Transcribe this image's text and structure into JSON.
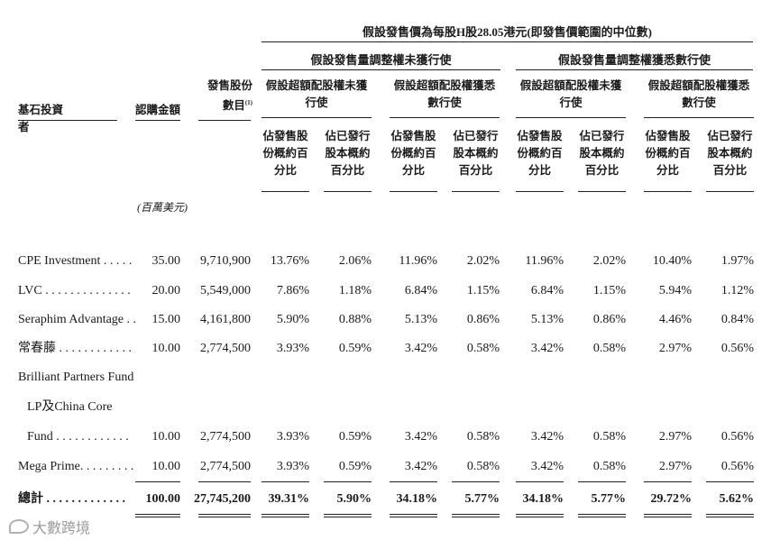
{
  "header": {
    "top": "假設發售價為每股H股28.05港元(即發售價範圍的中位數)",
    "group_a": "假設發售量調整權未獲行使",
    "group_b": "假設發售量調整權獲悉數行使",
    "sub_unexercised": "假設超額配股權未獲行使",
    "sub_exercised": "假設超額配股權獲悉數行使",
    "col_investor": "基石投資者",
    "col_amount": "認購金額",
    "col_shares": "發售股份數目",
    "col_shares_note": "(1)",
    "pct_offer": "佔發售股份概約百分比",
    "pct_issued": "佔已發行股本概約百分比",
    "unit": "(百萬美元)"
  },
  "rows": [
    {
      "name": "CPE Investment . . . . .",
      "amount": "35.00",
      "shares": "9,710,900",
      "v": [
        "13.76%",
        "2.06%",
        "11.96%",
        "2.02%",
        "11.96%",
        "2.02%",
        "10.40%",
        "1.97%"
      ]
    },
    {
      "name": "LVC . . . . . . . . . . . . . .",
      "amount": "20.00",
      "shares": "5,549,000",
      "v": [
        "7.86%",
        "1.18%",
        "6.84%",
        "1.15%",
        "6.84%",
        "1.15%",
        "5.94%",
        "1.12%"
      ]
    },
    {
      "name": "Seraphim Advantage . .",
      "amount": "15.00",
      "shares": "4,161,800",
      "v": [
        "5.90%",
        "0.88%",
        "5.13%",
        "0.86%",
        "5.13%",
        "0.86%",
        "4.46%",
        "0.84%"
      ]
    },
    {
      "name": "常春藤 . . . . . . . . . . . .",
      "amount": "10.00",
      "shares": "2,774,500",
      "v": [
        "3.93%",
        "0.59%",
        "3.42%",
        "0.58%",
        "3.42%",
        "0.58%",
        "2.97%",
        "0.56%"
      ]
    },
    {
      "name_lines": [
        "Brilliant Partners Fund",
        "LP及China Core",
        "Fund . . . . . . . . . . . ."
      ],
      "amount": "10.00",
      "shares": "2,774,500",
      "v": [
        "3.93%",
        "0.59%",
        "3.42%",
        "0.58%",
        "3.42%",
        "0.58%",
        "2.97%",
        "0.56%"
      ]
    },
    {
      "name": "Mega Prime. . . . . . . . .",
      "amount": "10.00",
      "shares": "2,774,500",
      "v": [
        "3.93%",
        "0.59%",
        "3.42%",
        "0.58%",
        "3.42%",
        "0.58%",
        "2.97%",
        "0.56%"
      ]
    }
  ],
  "total": {
    "name": "總計 . . . . . . . . . . . . .",
    "amount": "100.00",
    "shares": "27,745,200",
    "v": [
      "39.31%",
      "5.90%",
      "34.18%",
      "5.77%",
      "34.18%",
      "5.77%",
      "29.72%",
      "5.62%"
    ]
  },
  "watermark": {
    "text": "大數跨境",
    "icon": "brand-logo-icon"
  }
}
